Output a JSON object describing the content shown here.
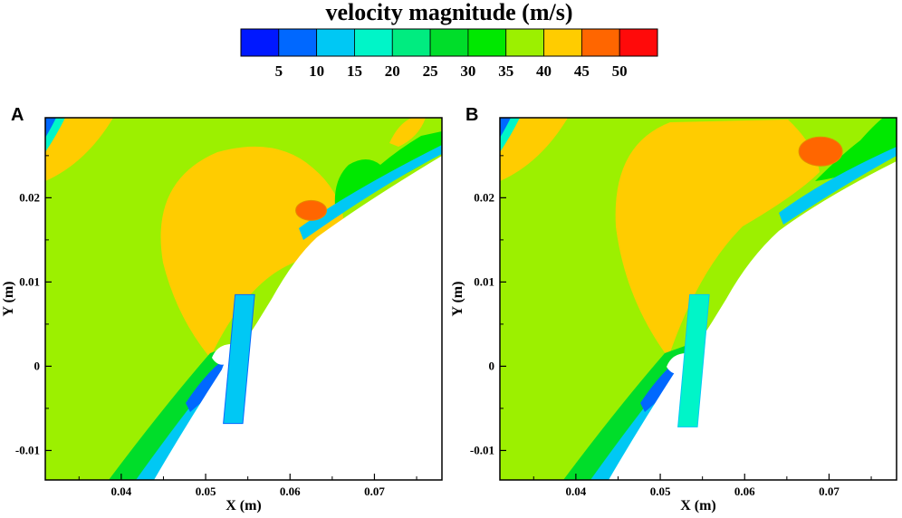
{
  "chart_data": {
    "type": "contour",
    "colorbar": {
      "title": "velocity magnitude (m/s)",
      "levels": [
        "5",
        "10",
        "15",
        "20",
        "25",
        "30",
        "35",
        "40",
        "45",
        "50"
      ],
      "colors": [
        "#0018ff",
        "#0068ff",
        "#00c8f4",
        "#00f5c8",
        "#00ec80",
        "#00dd2a",
        "#00e800",
        "#9cf000",
        "#ffcc00",
        "#ff6600",
        "#ff0a0a"
      ]
    },
    "panels": [
      {
        "label": "A",
        "xlabel": "X (m)",
        "ylabel": "Y (m)",
        "xlim": [
          0.031,
          0.078
        ],
        "ylim": [
          -0.0135,
          0.0295
        ],
        "xticks": [
          0.04,
          0.05,
          0.06,
          0.07
        ],
        "xtick_labels": [
          "0.04",
          "0.05",
          "0.06",
          "0.07"
        ],
        "yticks": [
          -0.01,
          0,
          0.01,
          0.02
        ],
        "ytick_labels": [
          "-0.01",
          "0",
          "0.01",
          "0.02"
        ],
        "feature_center_x": 0.0625,
        "feature_center_y": 0.0185,
        "jet_bottom_y": -0.0068
      },
      {
        "label": "B",
        "xlabel": "X (m)",
        "ylabel": "Y (m)",
        "xlim": [
          0.031,
          0.078
        ],
        "ylim": [
          -0.0135,
          0.0295
        ],
        "xticks": [
          0.04,
          0.05,
          0.06,
          0.07
        ],
        "xtick_labels": [
          "0.04",
          "0.05",
          "0.06",
          "0.07"
        ],
        "yticks": [
          -0.01,
          0,
          0.01,
          0.02
        ],
        "ytick_labels": [
          "-0.01",
          "0",
          "0.01",
          "0.02"
        ],
        "feature_center_x": 0.069,
        "feature_center_y": 0.0255,
        "jet_bottom_y": -0.0072
      }
    ]
  }
}
